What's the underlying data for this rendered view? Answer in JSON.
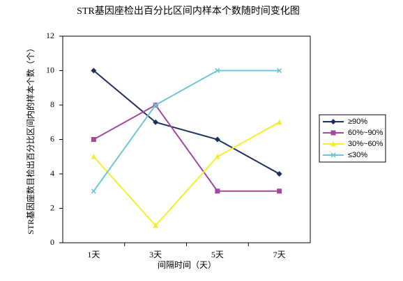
{
  "chart_data": {
    "type": "line",
    "title": "STR基因座检出百分比区间内样本个数随时间变化图",
    "x_label": "间隔时间（天）",
    "y_label": "STR基因座数目检出百分比区间内的样本个数（个）",
    "categories": [
      "1天",
      "3天",
      "5天",
      "7天"
    ],
    "series": [
      {
        "name": "≥90%",
        "color": "#1c2e5e",
        "marker": "diamond",
        "values": [
          10,
          7,
          6,
          4
        ]
      },
      {
        "name": "60%~90%",
        "color": "#a3479c",
        "marker": "square",
        "values": [
          6,
          8,
          3,
          3
        ]
      },
      {
        "name": "30%~60%",
        "color": "#f2ef2e",
        "marker": "triangle",
        "values": [
          5,
          1,
          5,
          7
        ]
      },
      {
        "name": "≤30%",
        "color": "#6cc9d2",
        "marker": "x",
        "values": [
          3,
          8,
          10,
          10
        ]
      }
    ],
    "ylim": [
      0,
      12
    ],
    "yticks": [
      0,
      2,
      4,
      6,
      8,
      10,
      12
    ],
    "grid": false,
    "legend": "right"
  }
}
